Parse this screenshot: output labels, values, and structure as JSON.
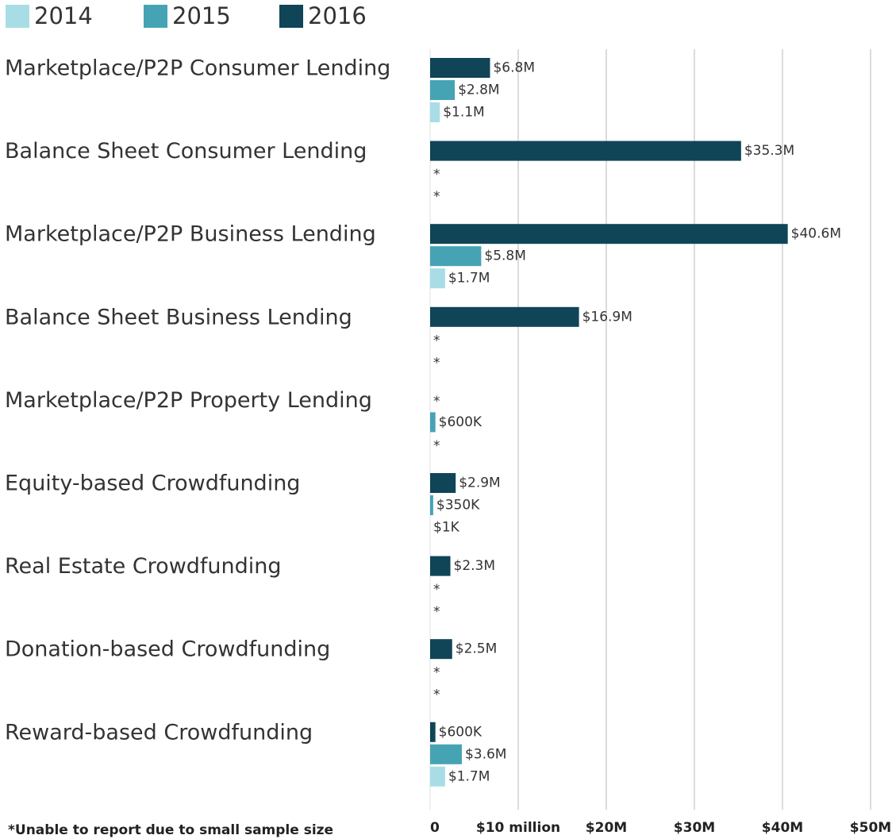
{
  "chart_data": {
    "type": "bar",
    "orientation": "horizontal",
    "categories": [
      "Marketplace/P2P Consumer Lending",
      "Balance Sheet Consumer Lending",
      "Marketplace/P2P Business Lending",
      "Balance Sheet Business Lending",
      "Marketplace/P2P Property Lending",
      "Equity-based Crowdfunding",
      "Real Estate Crowdfunding",
      "Donation-based Crowdfunding",
      "Reward-based Crowdfunding"
    ],
    "series": [
      {
        "name": "2014",
        "color": "#a8dde6",
        "values": [
          1.1,
          null,
          1.7,
          null,
          null,
          0.001,
          null,
          null,
          1.7
        ],
        "value_labels": [
          "$1.1M",
          "*",
          "$1.7M",
          "*",
          "*",
          "$1K",
          "*",
          "*",
          "$1.7M"
        ]
      },
      {
        "name": "2015",
        "color": "#46a3b4",
        "values": [
          2.8,
          null,
          5.8,
          null,
          0.6,
          0.35,
          null,
          null,
          3.6
        ],
        "value_labels": [
          "$2.8M",
          "*",
          "$5.8M",
          "*",
          "$600K",
          "$350K",
          "*",
          "*",
          "$3.6M"
        ]
      },
      {
        "name": "2016",
        "color": "#0f4557",
        "values": [
          6.8,
          35.3,
          40.6,
          16.9,
          null,
          2.9,
          2.3,
          2.5,
          0.6
        ],
        "value_labels": [
          "$6.8M",
          "$35.3M",
          "$40.6M",
          "$16.9M",
          "*",
          "$2.9M",
          "$2.3M",
          "$2.5M",
          "$600K"
        ]
      }
    ],
    "xlim": [
      0,
      50
    ],
    "xticks": [
      0,
      {
        "value": 10,
        "label": "$10 million"
      },
      {
        "value": 20,
        "label": "$20M"
      },
      {
        "value": 30,
        "label": "$30M"
      },
      {
        "value": 40,
        "label": "$40M"
      },
      {
        "value": 50,
        "label": "$50M"
      }
    ],
    "grid": true,
    "legend": "top-left",
    "footnote": "*Unable to report due to small sample size"
  }
}
